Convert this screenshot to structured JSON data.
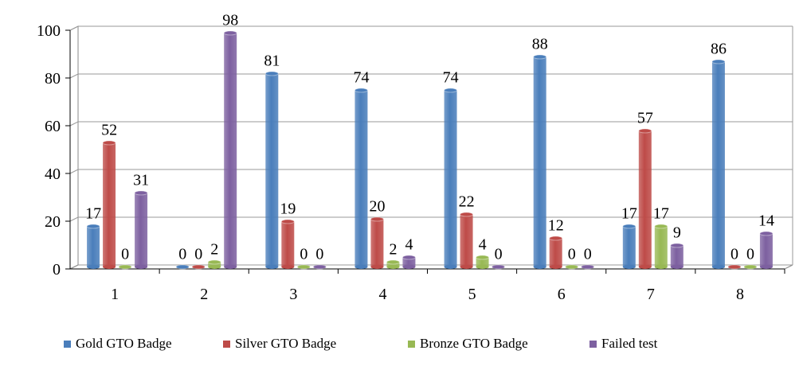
{
  "chart_data": {
    "type": "bar",
    "title": "",
    "xlabel": "",
    "ylabel": "",
    "ylim": [
      0,
      100
    ],
    "yticks": [
      0,
      20,
      40,
      60,
      80,
      100
    ],
    "grid": true,
    "legend_position": "bottom",
    "categories": [
      "1",
      "2",
      "3",
      "4",
      "5",
      "6",
      "7",
      "8"
    ],
    "series": [
      {
        "name": "Gold GTO Badge",
        "color": "#4a7ebb",
        "values": [
          17,
          0,
          81,
          74,
          74,
          88,
          17,
          86
        ]
      },
      {
        "name": "Silver GTO Badge",
        "color": "#be4b48",
        "values": [
          52,
          0,
          19,
          20,
          22,
          12,
          57,
          0
        ]
      },
      {
        "name": "Bronze GTO Badge",
        "color": "#98b954",
        "values": [
          0,
          2,
          0,
          2,
          4,
          0,
          17,
          0
        ]
      },
      {
        "name": "Failed test",
        "color": "#7d60a0",
        "values": [
          31,
          98,
          0,
          4,
          0,
          0,
          9,
          14
        ]
      }
    ]
  }
}
